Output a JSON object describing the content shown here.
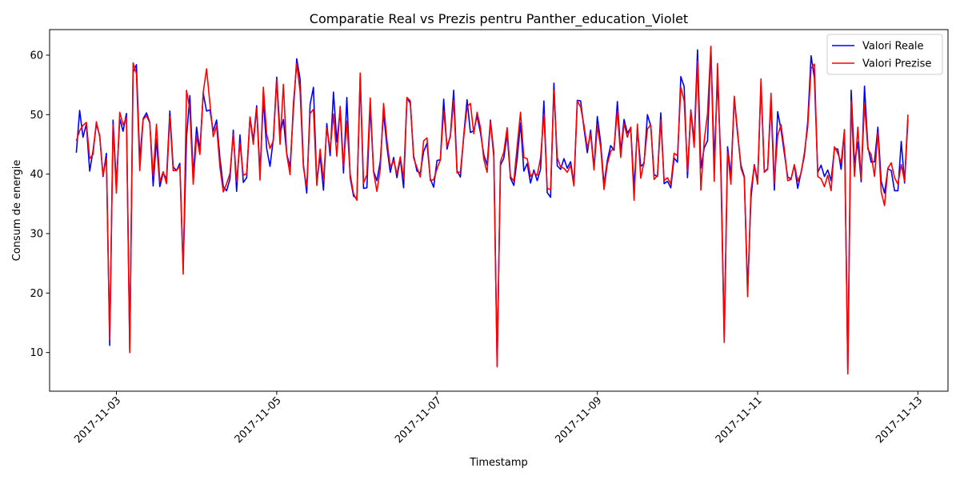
{
  "chart_data": {
    "type": "line",
    "title": "Comparatie Real vs Prezis pentru Panther_education_Violet",
    "xlabel": "Timestamp",
    "ylabel": "Consum de energie",
    "x_ticks": [
      "2017-11-03",
      "2017-11-05",
      "2017-11-07",
      "2017-11-09",
      "2017-11-11",
      "2017-11-13"
    ],
    "y_ticks": [
      10,
      20,
      30,
      40,
      50,
      60
    ],
    "xlim": [
      "2017-11-02 04:00",
      "2017-11-13 09:00"
    ],
    "ylim": [
      3.5,
      64.3
    ],
    "x_start": "2017-11-02 12:00",
    "x_step_hours": 1,
    "grid": false,
    "legend_position": "top-right",
    "series": [
      {
        "name": "Valori Reale",
        "color": "#0000ff",
        "values": [
          43.6,
          50.7,
          46.2,
          48.4,
          40.5,
          43.9,
          48.4,
          46.5,
          39.6,
          43.5,
          11.2,
          49.1,
          38.2,
          49.3,
          47.2,
          50.2,
          10.5,
          57.1,
          58.4,
          42.3,
          49.3,
          50.3,
          48.7,
          38.0,
          45.9,
          37.9,
          40.2,
          39.2,
          50.6,
          41.2,
          40.6,
          41.8,
          24.1,
          46.2,
          53.2,
          39.6,
          47.9,
          44.0,
          53.6,
          50.6,
          50.8,
          47.2,
          49.1,
          42.7,
          37.9,
          37.2,
          39.2,
          47.4,
          37.1,
          46.6,
          38.6,
          39.4,
          49.6,
          45.6,
          51.5,
          40.1,
          52.6,
          44.3,
          41.3,
          46.0,
          56.3,
          46.7,
          49.2,
          43.4,
          41.2,
          50.8,
          59.4,
          56.0,
          41.6,
          36.8,
          51.7,
          54.6,
          38.6,
          43.1,
          37.3,
          48.5,
          43.1,
          53.8,
          45.4,
          50.8,
          40.2,
          52.9,
          39.4,
          36.3,
          35.9,
          56.2,
          37.6,
          37.7,
          51.5,
          40.5,
          38.9,
          42.1,
          50.3,
          44.6,
          40.3,
          42.8,
          39.4,
          42.6,
          37.7,
          52.8,
          51.9,
          43.1,
          40.5,
          40.2,
          43.8,
          45.2,
          39.2,
          37.8,
          42.3,
          42.4,
          52.6,
          44.2,
          46.5,
          54.1,
          40.6,
          39.5,
          46.5,
          52.5,
          47.0,
          47.3,
          49.8,
          47.0,
          43.3,
          41.5,
          49.1,
          43.6,
          7.8,
          41.5,
          42.7,
          46.8,
          39.3,
          38.1,
          42.6,
          48.6,
          40.5,
          41.8,
          38.5,
          40.7,
          38.9,
          40.8,
          52.3,
          36.9,
          36.1,
          55.3,
          41.4,
          40.8,
          42.6,
          41.0,
          42.1,
          38.4,
          52.4,
          52.3,
          47.7,
          43.6,
          47.4,
          41.0,
          49.7,
          45.3,
          38.2,
          42.3,
          44.8,
          44.0,
          52.2,
          43.7,
          49.2,
          46.9,
          47.8,
          37.7,
          47.6,
          41.3,
          41.8,
          50.0,
          48.1,
          39.9,
          39.6,
          50.3,
          38.4,
          38.8,
          37.7,
          42.7,
          42.0,
          56.4,
          54.7,
          39.4,
          50.8,
          45.5,
          60.9,
          41.0,
          44.4,
          45.6,
          61.3,
          42.1,
          56.0,
          42.0,
          12.4,
          44.6,
          39.7,
          52.7,
          46.7,
          41.5,
          39.6,
          20.3,
          35.9,
          41.6,
          38.7,
          55.3,
          40.4,
          40.9,
          52.3,
          37.3,
          50.5,
          47.5,
          43.5,
          39.5,
          39.2,
          41.5,
          37.6,
          40.3,
          43.1,
          48.8,
          59.9,
          56.2,
          40.3,
          41.5,
          39.6,
          40.7,
          38.9,
          44.3,
          44.2,
          40.8,
          47.3,
          7.1,
          54.1,
          41.9,
          45.4,
          38.7,
          54.8,
          44.6,
          42.0,
          42.1,
          47.9,
          38.8,
          36.8,
          40.9,
          40.6,
          37.2,
          37.2,
          45.5,
          38.5,
          49.2
        ]
      },
      {
        "name": "Valori Prezise",
        "color": "#ff0000",
        "values": [
          45.6,
          47.3,
          48.2,
          48.7,
          42.6,
          43.3,
          48.8,
          46.3,
          39.8,
          42.6,
          12.2,
          48.3,
          36.8,
          50.4,
          48.3,
          49.5,
          10.0,
          58.7,
          56.9,
          40.6,
          49.2,
          49.8,
          48.6,
          39.6,
          48.4,
          38.7,
          40.4,
          38.4,
          49.7,
          40.6,
          40.6,
          41.4,
          23.2,
          54.1,
          50.8,
          38.3,
          46.4,
          43.3,
          53.8,
          57.7,
          51.9,
          46.3,
          48.1,
          41.2,
          37.0,
          38.4,
          40.1,
          46.7,
          38.7,
          45.2,
          39.8,
          40.1,
          49.5,
          45.0,
          51.1,
          39.0,
          54.6,
          46.7,
          44.3,
          45.6,
          55.9,
          45.0,
          55.1,
          43.3,
          39.9,
          51.9,
          58.6,
          53.9,
          41.1,
          37.9,
          50.2,
          50.9,
          38.1,
          44.2,
          38.8,
          47.8,
          44.1,
          50.1,
          43.0,
          51.4,
          41.3,
          48.9,
          40.0,
          36.7,
          35.6,
          57.0,
          38.5,
          39.9,
          52.8,
          40.4,
          37.1,
          40.8,
          51.9,
          45.7,
          41.2,
          42.3,
          40.0,
          42.9,
          39.2,
          52.9,
          52.3,
          42.7,
          41.1,
          39.5,
          45.6,
          46.1,
          38.9,
          39.1,
          40.9,
          42.4,
          50.6,
          44.7,
          46.3,
          52.4,
          40.2,
          40.4,
          46.2,
          51.3,
          51.9,
          46.8,
          50.4,
          47.8,
          42.5,
          40.3,
          48.9,
          42.8,
          7.6,
          42.1,
          43.7,
          47.8,
          39.6,
          38.8,
          44.7,
          50.4,
          42.8,
          42.6,
          39.6,
          40.3,
          39.8,
          42.7,
          50.1,
          37.6,
          37.4,
          54.1,
          42.8,
          41.2,
          41.0,
          40.3,
          41.5,
          38.0,
          52.3,
          51.3,
          48.2,
          44.4,
          46.8,
          40.7,
          48.1,
          44.5,
          37.4,
          41.7,
          43.8,
          44.5,
          50.6,
          42.8,
          48.5,
          46.2,
          47.9,
          35.6,
          48.4,
          39.3,
          42.1,
          47.6,
          48.3,
          39.1,
          39.8,
          49.1,
          38.9,
          39.4,
          38.3,
          43.5,
          43.1,
          54.6,
          52.3,
          40.5,
          50.7,
          44.5,
          59.0,
          37.3,
          45.6,
          50.2,
          61.5,
          38.8,
          58.6,
          40.0,
          11.7,
          43.8,
          38.3,
          53.1,
          47.1,
          41.0,
          39.4,
          19.4,
          37.2,
          41.5,
          38.3,
          56.0,
          40.3,
          40.8,
          53.6,
          38.5,
          46.5,
          48.3,
          44.2,
          38.9,
          39.1,
          41.6,
          38.8,
          40.1,
          43.6,
          47.9,
          57.8,
          58.5,
          39.6,
          39.2,
          37.9,
          39.8,
          37.2,
          44.6,
          43.5,
          41.9,
          47.5,
          6.4,
          52.3,
          39.6,
          47.9,
          39.2,
          51.8,
          44.2,
          43.3,
          39.6,
          47.1,
          37.0,
          34.7,
          41.0,
          41.9,
          39.4,
          38.3,
          41.6,
          38.8,
          50.0
        ]
      }
    ]
  }
}
